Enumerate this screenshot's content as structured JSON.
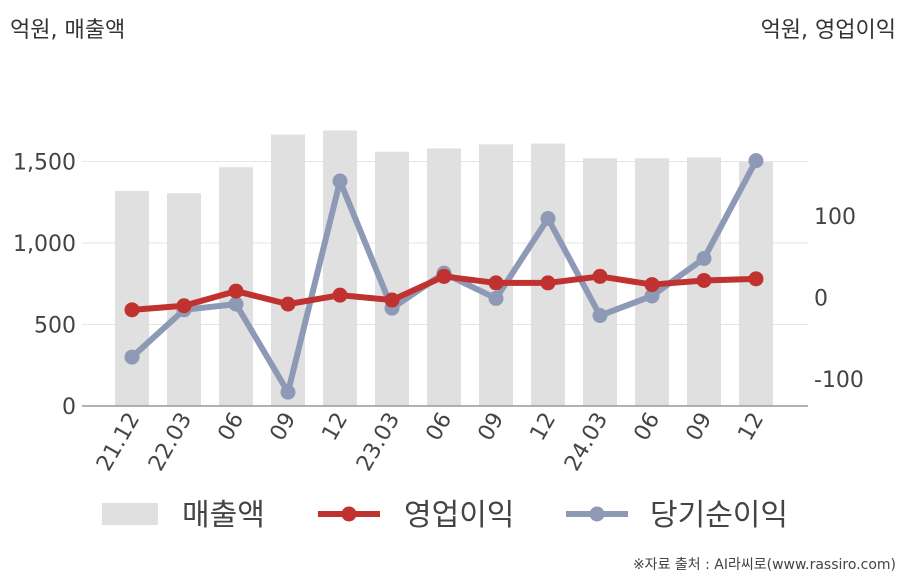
{
  "header": {
    "left_unit": "억원, 매출액",
    "right_unit": "억원, 영업이익"
  },
  "footer": {
    "source": "※자료 출처 : AI라씨로(www.rassiro.com)"
  },
  "chart_data": {
    "type": "bar",
    "categories": [
      "21.12",
      "22.03",
      "06",
      "09",
      "12",
      "23.03",
      "06",
      "09",
      "12",
      "24.03",
      "06",
      "09",
      "12"
    ],
    "series": [
      {
        "name": "매출액",
        "type": "bar",
        "axis": "left",
        "color": "#e0e0e0",
        "values": [
          1320,
          1305,
          1465,
          1665,
          1690,
          1560,
          1580,
          1605,
          1610,
          1520,
          1520,
          1525,
          1500
        ]
      },
      {
        "name": "영업이익",
        "type": "line",
        "axis": "right",
        "color": "#c0322f",
        "values": [
          -15,
          -10,
          8,
          -8,
          3,
          -3,
          26,
          18,
          18,
          26,
          16,
          21,
          23
        ]
      },
      {
        "name": "당기순이익",
        "type": "line",
        "axis": "right",
        "color": "#8e9ab5",
        "values": [
          -73,
          -15,
          -8,
          -116,
          143,
          -13,
          30,
          -1,
          97,
          -22,
          2,
          48,
          168
        ]
      }
    ],
    "left_axis": {
      "ylim": [
        0,
        2000
      ],
      "ticks": [
        0,
        500,
        1000,
        1500
      ],
      "tick_labels": [
        "0",
        "500",
        "1,000",
        "1,500"
      ]
    },
    "right_axis": {
      "ylim": [
        -133,
        267
      ],
      "ticks": [
        -100,
        0,
        100
      ],
      "tick_labels": [
        "-100",
        "0",
        "100"
      ]
    },
    "legend": {
      "placement": "bottom"
    },
    "grid": true
  }
}
